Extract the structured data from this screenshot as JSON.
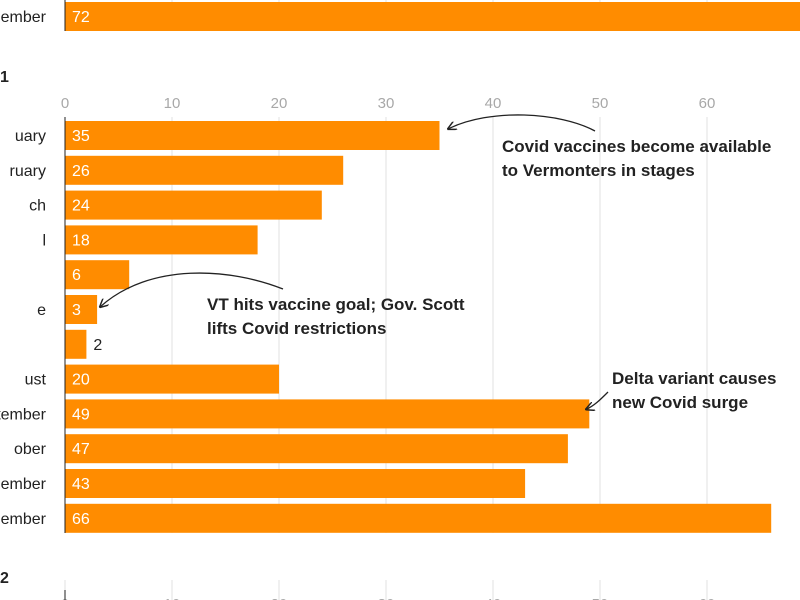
{
  "chart_data": {
    "type": "bar",
    "orientation": "horizontal",
    "bar_color": "#ff8c00",
    "xlim": [
      0,
      70
    ],
    "x_ticks": [
      "0",
      "10",
      "20",
      "30",
      "40",
      "50",
      "60"
    ],
    "top_section": {
      "categories": [
        "ember"
      ],
      "values": [
        72
      ]
    },
    "year_label": "1",
    "categories": [
      "uary",
      "ruary",
      "ch",
      "l",
      "",
      "e",
      "",
      "ust",
      "tember",
      "ober",
      "ember",
      "ember"
    ],
    "values": [
      35,
      26,
      24,
      18,
      6,
      3,
      2,
      20,
      49,
      47,
      43,
      66
    ],
    "next_year_label": "2",
    "annotations": [
      {
        "lines": [
          "Covid vaccines become available",
          "to Vermonters in stages"
        ],
        "points_to_index": 0
      },
      {
        "lines": [
          "VT hits vaccine goal; Gov. Scott",
          "lifts Covid restrictions"
        ],
        "points_to_index": 5
      },
      {
        "lines": [
          "Delta variant causes",
          "new Covid surge"
        ],
        "points_to_index": 8
      }
    ]
  }
}
